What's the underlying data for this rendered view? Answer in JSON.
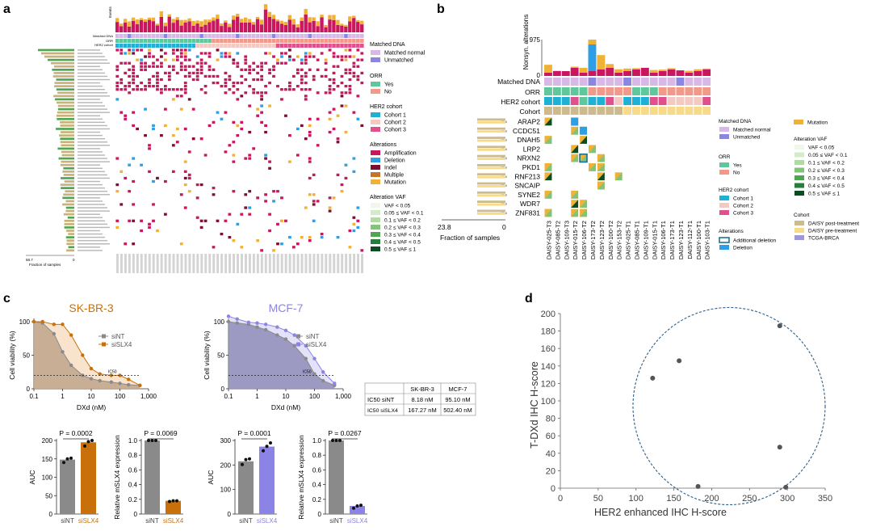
{
  "panel_labels": {
    "a": "a",
    "b": "b",
    "c": "c",
    "d": "d"
  },
  "colors": {
    "amplification": "#c9165f",
    "deletion": "#2e9ee5",
    "indel": "#7a1030",
    "multiple": "#c8742a",
    "mutation": "#f0b235",
    "matched_normal": "#d7b8e6",
    "unmatched": "#8b86e0",
    "orr_yes": "#5ec79b",
    "orr_no": "#f2998a",
    "cohort1": "#1fb0d6",
    "cohort2": "#f4c9c2",
    "cohort3": "#e0508c",
    "daisy_post": "#cdbb8d",
    "daisy_pre": "#f7db8a",
    "tcga": "#9d97de",
    "vaf": [
      "#eef7ea",
      "#d2ecc7",
      "#b0dca0",
      "#82c477",
      "#4fa552",
      "#237f3b",
      "#0b4d23"
    ],
    "skbr3": "#c8710a",
    "mcf7": "#8b84e6",
    "sint_bar": "#8a8a8a"
  },
  "panel_a": {
    "bar_axis_label": "Events",
    "track_labels": [
      "Matched DNA",
      "ORR",
      "HER2 cohort"
    ],
    "fraction_left": "58.7",
    "fraction_right": "0",
    "fraction_label": "Fraction of samples",
    "legend": {
      "matched_dna_title": "Matched DNA",
      "matched_normal": "Matched normal",
      "unmatched": "Unmatched",
      "orr_title": "ORR",
      "yes": "Yes",
      "no": "No",
      "her2_title": "HER2 cohort",
      "cohort1": "Cohort 1",
      "cohort2": "Cohort 2",
      "cohort3": "Cohort 3",
      "alterations_title": "Alterations",
      "amplification": "Amplification",
      "deletion": "Deletion",
      "indel": "Indel",
      "multiple": "Multiple",
      "mutation": "Mutation",
      "vaf_title": "Alteration VAF",
      "vaf_bins": [
        "VAF < 0.05",
        "0.05 ≤ VAF < 0.1",
        "0.1 ≤ VAF < 0.2",
        "0.2 ≤ VAF < 0.3",
        "0.3 ≤ VAF < 0.4",
        "0.4 ≤ VAF < 0.5",
        "0.5 ≤ VAF ≤ 1"
      ]
    }
  },
  "panel_b": {
    "y_axis_label": "Nonsyn. alterations",
    "y_max": "975",
    "y_min": "0",
    "track_labels": [
      "Matched DNA",
      "ORR",
      "HER2 cohort",
      "Cohort"
    ],
    "genes": [
      "ARAP2",
      "CCDC51",
      "DNAH5",
      "LRP2",
      "NRXN2",
      "PKD1",
      "RNF213",
      "SNCAIP",
      "SYNE2",
      "WDR7",
      "ZNF831"
    ],
    "gene_pct": [
      "13.8",
      "13.8",
      "13.8",
      "13.8",
      "13.8",
      "13.8",
      "13.8",
      "13.8",
      "13.8",
      "13.8",
      "13.8"
    ],
    "samples": [
      "DAISY-025-T3",
      "DAISY-085-T2",
      "DAISY-109-T3",
      "DAISY-015-T2",
      "DAISY-106-T2",
      "DAISY-173-T2",
      "DAISY-123-T2",
      "DAISY-100-T2",
      "DAISY-153-T2",
      "DAISY-025-T1",
      "DAISY-085-T1",
      "DAISY-109-T1",
      "DAISY-015-T1",
      "DAISY-106-T1",
      "DAISY-173-T1",
      "DAISY-123-T1",
      "DAISY-112-T1",
      "DAISY-100-T1",
      "DAISY-103-T1"
    ],
    "fraction_left": "23.8",
    "fraction_right": "0",
    "fraction_label": "Fraction of samples",
    "legend": {
      "matched_dna_title": "Matched DNA",
      "matched_normal": "Matched normal",
      "unmatched": "Unmatched",
      "orr_title": "ORR",
      "yes": "Yes",
      "no": "No",
      "her2_title": "HER2 cohort",
      "cohort1": "Cohort 1",
      "cohort2": "Cohort 2",
      "cohort3": "Cohort 3",
      "alterations_title": "Alterations",
      "additional_deletion": "Additional deletion",
      "deletion": "Deletion",
      "mutation": "Mutation",
      "vaf_title": "Alteration VAF",
      "vaf_bins": [
        "VAF < 0.05",
        "0.05 ≤ VAF < 0.1",
        "0.1 ≤ VAF < 0.2",
        "0.2 ≤ VAF < 0.3",
        "0.3 ≤ VAF < 0.4",
        "0.4 ≤ VAF < 0.5",
        "0.5 ≤ VAF ≤ 1"
      ],
      "cohort_title": "Cohort",
      "daisy_post": "DAISY post-treatment",
      "daisy_pre": "DAISY pre-treatment",
      "tcga": "TCGA-BRCA"
    }
  },
  "panel_c": {
    "table": {
      "headers": [
        "",
        "SK-BR-3",
        "MCF-7"
      ],
      "rows": [
        {
          "label": "IC50 siNT",
          "skbr3": "8.18 nM",
          "mcf7": "95.10 nM"
        },
        {
          "label": "IC50 siSLX4",
          "skbr3": "167.27 nM",
          "mcf7": "502.40 nM"
        }
      ]
    },
    "ic50_tag": "IC50"
  },
  "chart_data": [
    {
      "id": "skbr3_viability",
      "type": "area",
      "title": "SK-BR-3",
      "xlabel": "DXd (nM)",
      "ylabel": "Cell viability (%)",
      "xscale": "log",
      "xlim": [
        0.1,
        1000
      ],
      "ylim": [
        0,
        100
      ],
      "x_ticks": [
        "0.1",
        "1",
        "10",
        "100",
        "1,000"
      ],
      "y_ticks": [
        "0",
        "50",
        "100"
      ],
      "ic50_line": 20,
      "x": [
        0.1,
        0.2,
        0.5,
        1,
        2,
        5,
        10,
        20,
        50,
        100,
        200,
        500
      ],
      "series": [
        {
          "name": "siNT",
          "values": [
            100,
            98,
            82,
            55,
            35,
            20,
            15,
            12,
            10,
            8,
            6,
            5
          ]
        },
        {
          "name": "siSLX4",
          "values": [
            100,
            100,
            96,
            96,
            80,
            50,
            30,
            22,
            20,
            20,
            14,
            5
          ]
        }
      ]
    },
    {
      "id": "mcf7_viability",
      "type": "area",
      "title": "MCF-7",
      "xlabel": "DXd (nM)",
      "ylabel": "Cell viability (%)",
      "xscale": "log",
      "xlim": [
        0.1,
        1000
      ],
      "ylim": [
        0,
        100
      ],
      "x_ticks": [
        "0.1",
        "1",
        "10",
        "100",
        "1,000"
      ],
      "y_ticks": [
        "0",
        "50",
        "100"
      ],
      "ic50_line": 20,
      "x": [
        0.1,
        0.2,
        0.5,
        1,
        2,
        5,
        10,
        20,
        50,
        100,
        200,
        500
      ],
      "series": [
        {
          "name": "siNT",
          "values": [
            100,
            98,
            96,
            92,
            88,
            80,
            74,
            64,
            45,
            22,
            12,
            5
          ]
        },
        {
          "name": "siSLX4",
          "values": [
            108,
            104,
            99,
            98,
            96,
            92,
            87,
            80,
            64,
            45,
            25,
            8
          ]
        }
      ]
    },
    {
      "id": "skbr3_auc",
      "type": "bar",
      "categories": [
        "siNT",
        "siSLX4"
      ],
      "values": [
        148,
        195
      ],
      "ylabel": "AUC",
      "ylim": [
        0,
        200
      ],
      "y_ticks": [
        "0",
        "50",
        "100",
        "150",
        "200"
      ],
      "p_value": "P = 0.0002"
    },
    {
      "id": "skbr3_expr",
      "type": "bar",
      "categories": [
        "siNT",
        "siSLX4"
      ],
      "values": [
        1.0,
        0.18
      ],
      "ylabel": "Relative mSLX4 expression",
      "ylim": [
        0,
        1.0
      ],
      "y_ticks": [
        "0",
        "0.2",
        "0.4",
        "0.6",
        "0.8",
        "1.0"
      ],
      "p_value": "P = 0.0069"
    },
    {
      "id": "mcf7_auc",
      "type": "bar",
      "categories": [
        "siNT",
        "siSLX4"
      ],
      "values": [
        215,
        275
      ],
      "ylabel": "AUC",
      "ylim": [
        0,
        300
      ],
      "y_ticks": [
        "0",
        "100",
        "200",
        "300"
      ],
      "p_value": "P = 0.0001"
    },
    {
      "id": "mcf7_expr",
      "type": "bar",
      "categories": [
        "siNT",
        "siSLX4"
      ],
      "values": [
        1.0,
        0.11
      ],
      "ylabel": "Relative mSLX4 expression",
      "ylim": [
        0,
        1.0
      ],
      "y_ticks": [
        "0",
        "0.2",
        "0.4",
        "0.6",
        "0.8",
        "1.0"
      ],
      "p_value": "P = 0.0267"
    },
    {
      "id": "hscore_scatter",
      "type": "scatter",
      "xlabel": "HER2 enhanced IHC H-score",
      "ylabel": "T-DXd IHC H-score",
      "xlim": [
        0,
        350
      ],
      "ylim": [
        0,
        200
      ],
      "x_ticks": [
        "0",
        "50",
        "100",
        "150",
        "200",
        "250",
        "300",
        "350"
      ],
      "y_ticks": [
        "0",
        "20",
        "40",
        "60",
        "80",
        "100",
        "120",
        "140",
        "160",
        "180",
        "200"
      ],
      "points": [
        {
          "x": 122,
          "y": 126
        },
        {
          "x": 157,
          "y": 146
        },
        {
          "x": 182,
          "y": 2
        },
        {
          "x": 290,
          "y": 186
        },
        {
          "x": 290,
          "y": 47
        },
        {
          "x": 298,
          "y": 1
        }
      ]
    }
  ]
}
